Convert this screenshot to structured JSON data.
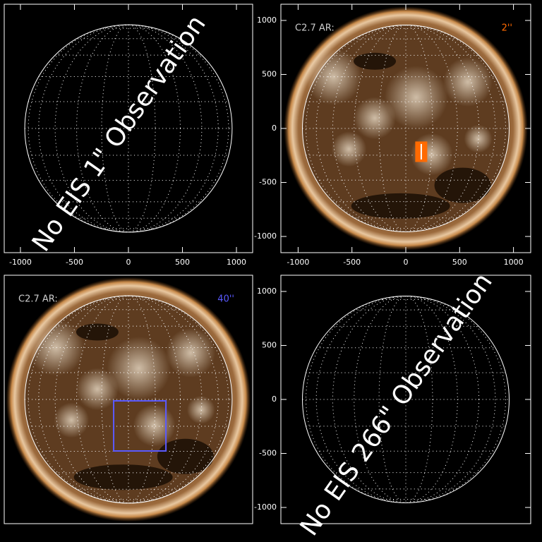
{
  "panels": [
    {
      "message": "No EIS 1\" Observation",
      "xlim": [
        -1150,
        1150
      ],
      "ylim": [
        -1150,
        1150
      ],
      "xticks": [
        -1000,
        -500,
        0,
        500,
        1000
      ]
    },
    {
      "flare_label": "C2.7 AR:",
      "size_label": "2''",
      "size_color": "#ff6a00",
      "xlim": [
        -1160,
        1160
      ],
      "ylim": [
        -1150,
        1150
      ],
      "xticks": [
        -1000,
        -500,
        0,
        500,
        1000
      ],
      "yticks": [
        -1000,
        -500,
        0,
        500,
        1000
      ],
      "box": {
        "x": [
          91,
          196
        ],
        "y": [
          -124,
          -307
        ]
      }
    },
    {
      "flare_label": "C2.7 AR:",
      "size_label": "40''",
      "size_color": "#5a5aff",
      "xlim": [
        -1150,
        1150
      ],
      "ylim": [
        -1150,
        1150
      ],
      "box": {
        "x": [
          -137,
          347
        ],
        "y": [
          -13,
          -477
        ]
      }
    },
    {
      "message": "No EIS 266\" Observation",
      "xlim": [
        -1160,
        1160
      ],
      "ylim": [
        -1150,
        1150
      ],
      "yticks": [
        -1000,
        -500,
        0,
        500,
        1000
      ]
    }
  ]
}
